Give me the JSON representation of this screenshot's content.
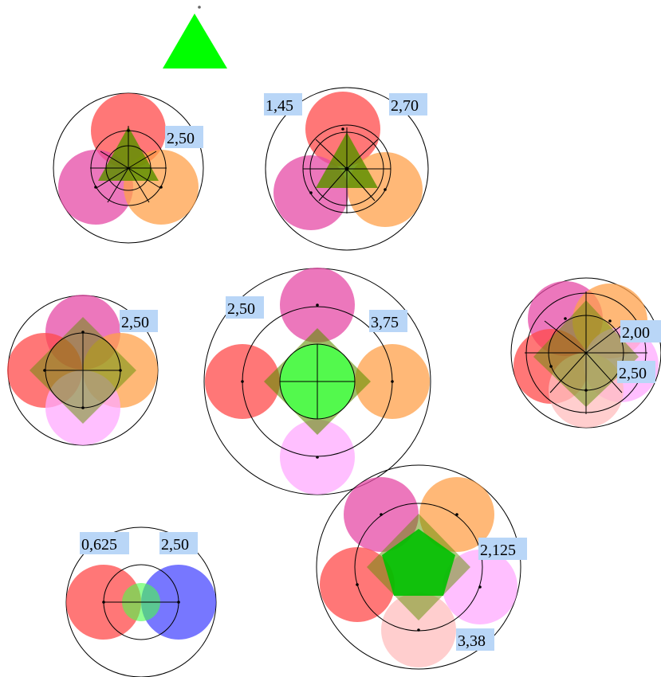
{
  "colors": {
    "red": "#ff4a4a",
    "orange": "#ffa04a",
    "magenta": "#e64aa6",
    "pink": "#ffaaff",
    "lightpink": "#ffbdbd",
    "blue": "#4a4aff",
    "green": "#00ff00",
    "olive": "#5f8f00",
    "label_bg": "#b9d6f7"
  },
  "labels": {
    "d1_value": "2,50",
    "d2_left": "1,45",
    "d2_right": "2,70",
    "d3_value": "2,50",
    "d4_left": "2,50",
    "d4_right": "3,75",
    "d5_upper": "2,00",
    "d5_lower": "2,50",
    "d6_left": "0,625",
    "d6_right": "2,50",
    "d7_upper": "2,125",
    "d7_lower": "3,38"
  }
}
